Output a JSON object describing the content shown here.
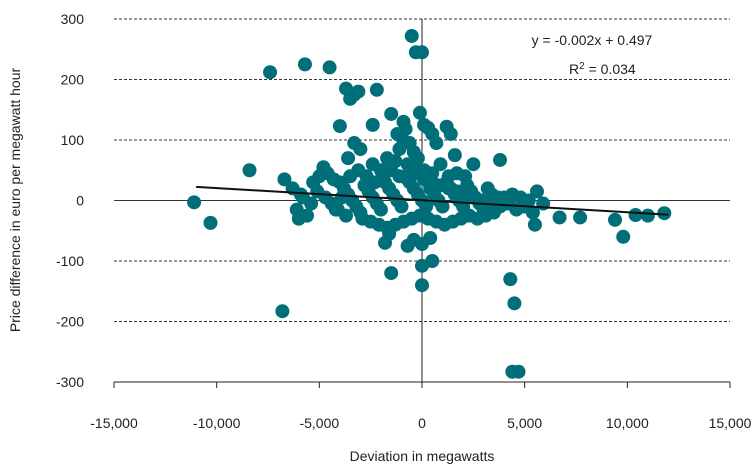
{
  "chart_data": {
    "type": "scatter",
    "title": "",
    "xlabel": "Deviation in megawatts",
    "ylabel": "Price difference in euro per megawatt hour",
    "xlim": [
      -15000,
      15000
    ],
    "ylim": [
      -300,
      300
    ],
    "x_ticks": [
      -15000,
      -10000,
      -5000,
      0,
      5000,
      10000,
      15000
    ],
    "x_tick_labels": [
      "-15,000",
      "-10,000",
      "-5,000",
      "0",
      "5,000",
      "10,000",
      "15,000"
    ],
    "y_ticks": [
      -300,
      -200,
      -100,
      0,
      100,
      200,
      300
    ],
    "y_tick_labels": [
      "-300",
      "-200",
      "-100",
      "0",
      "100",
      "200",
      "300"
    ],
    "grid": "horizontal dashed",
    "marker_color": "#006F79",
    "trendline": {
      "slope": -0.002,
      "intercept": 0.497,
      "x_range": [
        -11000,
        12000
      ]
    },
    "annotations": {
      "equation": "y = -0.002x + 0.497",
      "r2_label": "R",
      "r2_sup": "2",
      "r2_value": " = 0.034"
    },
    "points": [
      [
        -11100,
        -3
      ],
      [
        -10300,
        -37
      ],
      [
        -8400,
        50
      ],
      [
        -7400,
        212
      ],
      [
        -6800,
        -183
      ],
      [
        -5700,
        225
      ],
      [
        -4500,
        220
      ],
      [
        -3700,
        185
      ],
      [
        -3500,
        168
      ],
      [
        -3300,
        175
      ],
      [
        -3100,
        180
      ],
      [
        -2200,
        183
      ],
      [
        -2400,
        125
      ],
      [
        -4000,
        123
      ],
      [
        -3300,
        95
      ],
      [
        -3000,
        85
      ],
      [
        -3600,
        70
      ],
      [
        -1500,
        143
      ],
      [
        -900,
        130
      ],
      [
        -1200,
        110
      ],
      [
        -1000,
        105
      ],
      [
        -800,
        118
      ],
      [
        -600,
        95
      ],
      [
        -400,
        80
      ],
      [
        -200,
        70
      ],
      [
        -100,
        145
      ],
      [
        100,
        125
      ],
      [
        300,
        120
      ],
      [
        500,
        110
      ],
      [
        700,
        95
      ],
      [
        1200,
        122
      ],
      [
        1400,
        110
      ],
      [
        1600,
        75
      ],
      [
        2500,
        60
      ],
      [
        3800,
        67
      ],
      [
        -500,
        272
      ],
      [
        -300,
        245
      ],
      [
        0,
        245
      ],
      [
        -6700,
        35
      ],
      [
        -6300,
        20
      ],
      [
        -5900,
        10
      ],
      [
        -6100,
        -15
      ],
      [
        -6000,
        -30
      ],
      [
        -5600,
        -25
      ],
      [
        -5300,
        30
      ],
      [
        -5000,
        40
      ],
      [
        -4800,
        55
      ],
      [
        -4600,
        45
      ],
      [
        -4300,
        35
      ],
      [
        -4000,
        30
      ],
      [
        -3800,
        20
      ],
      [
        -3600,
        10
      ],
      [
        -3400,
        0
      ],
      [
        -3200,
        -10
      ],
      [
        -3000,
        -20
      ],
      [
        -2800,
        25
      ],
      [
        -2600,
        15
      ],
      [
        -2400,
        5
      ],
      [
        -2200,
        -5
      ],
      [
        -2000,
        -15
      ],
      [
        -1800,
        30
      ],
      [
        -1600,
        20
      ],
      [
        -1400,
        10
      ],
      [
        -1200,
        0
      ],
      [
        -1000,
        -10
      ],
      [
        -800,
        40
      ],
      [
        -600,
        30
      ],
      [
        -400,
        20
      ],
      [
        -200,
        10
      ],
      [
        0,
        0
      ],
      [
        200,
        -10
      ],
      [
        400,
        20
      ],
      [
        600,
        10
      ],
      [
        800,
        0
      ],
      [
        1000,
        -10
      ],
      [
        1200,
        30
      ],
      [
        1400,
        20
      ],
      [
        1600,
        10
      ],
      [
        1800,
        0
      ],
      [
        2000,
        -10
      ],
      [
        2200,
        25
      ],
      [
        2400,
        15
      ],
      [
        2600,
        5
      ],
      [
        2800,
        -5
      ],
      [
        3000,
        -15
      ],
      [
        3200,
        20
      ],
      [
        3400,
        10
      ],
      [
        3600,
        0
      ],
      [
        3800,
        -10
      ],
      [
        4000,
        5
      ],
      [
        4200,
        -5
      ],
      [
        4400,
        10
      ],
      [
        4600,
        -15
      ],
      [
        4800,
        5
      ],
      [
        5000,
        -10
      ],
      [
        5200,
        0
      ],
      [
        5400,
        -20
      ],
      [
        5600,
        15
      ],
      [
        5900,
        -5
      ],
      [
        5500,
        -40
      ],
      [
        6700,
        -28
      ],
      [
        7700,
        -28
      ],
      [
        9400,
        -32
      ],
      [
        9800,
        -60
      ],
      [
        10400,
        -24
      ],
      [
        11000,
        -25
      ],
      [
        11800,
        -21
      ],
      [
        -2400,
        60
      ],
      [
        -2000,
        50
      ],
      [
        -1700,
        70
      ],
      [
        -1300,
        65
      ],
      [
        -1100,
        85
      ],
      [
        -700,
        60
      ],
      [
        -300,
        55
      ],
      [
        100,
        50
      ],
      [
        500,
        45
      ],
      [
        900,
        60
      ],
      [
        1300,
        40
      ],
      [
        1700,
        45
      ],
      [
        2100,
        40
      ],
      [
        -5800,
        5
      ],
      [
        -5400,
        -5
      ],
      [
        -5100,
        15
      ],
      [
        -4700,
        5
      ],
      [
        -4400,
        -5
      ],
      [
        -4100,
        -15
      ],
      [
        -3700,
        -25
      ],
      [
        -2900,
        -30
      ],
      [
        -2500,
        -35
      ],
      [
        -2100,
        -40
      ],
      [
        -1700,
        -45
      ],
      [
        -1300,
        -40
      ],
      [
        -900,
        -35
      ],
      [
        -500,
        -30
      ],
      [
        -100,
        -25
      ],
      [
        300,
        -30
      ],
      [
        700,
        -35
      ],
      [
        1100,
        -40
      ],
      [
        1500,
        -35
      ],
      [
        1900,
        -30
      ],
      [
        2300,
        -25
      ],
      [
        2700,
        -30
      ],
      [
        3100,
        -25
      ],
      [
        3500,
        -20
      ],
      [
        -1800,
        -70
      ],
      [
        -1600,
        -55
      ],
      [
        -700,
        -75
      ],
      [
        -400,
        -65
      ],
      [
        0,
        -72
      ],
      [
        400,
        -62
      ],
      [
        -1500,
        -120
      ],
      [
        0,
        -108
      ],
      [
        500,
        -100
      ],
      [
        0,
        -140
      ],
      [
        4300,
        -130
      ],
      [
        4500,
        -170
      ],
      [
        4400,
        -283
      ],
      [
        4700,
        -283
      ],
      [
        -4200,
        -15
      ],
      [
        -3900,
        5
      ],
      [
        -3500,
        40
      ],
      [
        -3100,
        50
      ],
      [
        -2700,
        40
      ],
      [
        -2300,
        30
      ],
      [
        -1900,
        40
      ],
      [
        -1500,
        50
      ],
      [
        -1100,
        40
      ],
      [
        -700,
        35
      ],
      [
        -300,
        45
      ],
      [
        100,
        35
      ],
      [
        500,
        30
      ],
      [
        900,
        25
      ],
      [
        1300,
        20
      ],
      [
        1700,
        15
      ],
      [
        2100,
        10
      ],
      [
        2500,
        5
      ],
      [
        2900,
        0
      ],
      [
        3300,
        -5
      ],
      [
        3700,
        5
      ],
      [
        4100,
        -5
      ]
    ]
  }
}
